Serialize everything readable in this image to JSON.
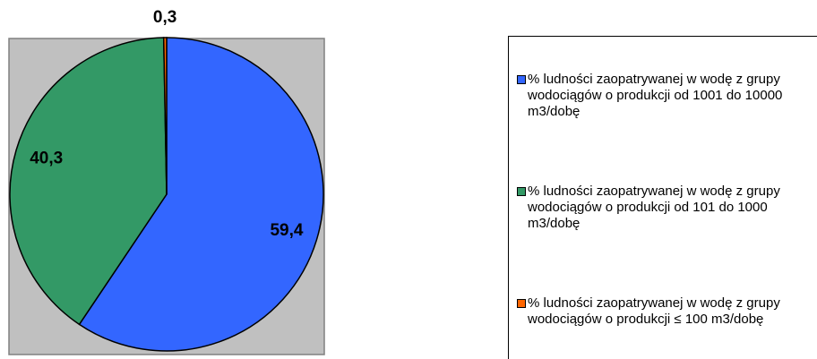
{
  "chart_data": {
    "type": "pie",
    "categories": [
      "% ludności zaopatrywanej w wodę z grupy wodociągów o produkcji od 1001 do 10000 m3/dobę",
      "% ludności zaopatrywanej w wodę z grupy wodociągów o produkcji od 101 do 1000 m3/dobę",
      "% ludności zaopatrywanej w wodę z grupy wodociągów o produkcji ≤ 100 m3/dobę"
    ],
    "values": [
      59.4,
      40.3,
      0.3
    ],
    "value_labels": [
      "59,4",
      "40,3",
      "0,3"
    ],
    "colors": [
      "#3366ff",
      "#339966",
      "#ff6600"
    ],
    "legend": "right"
  }
}
